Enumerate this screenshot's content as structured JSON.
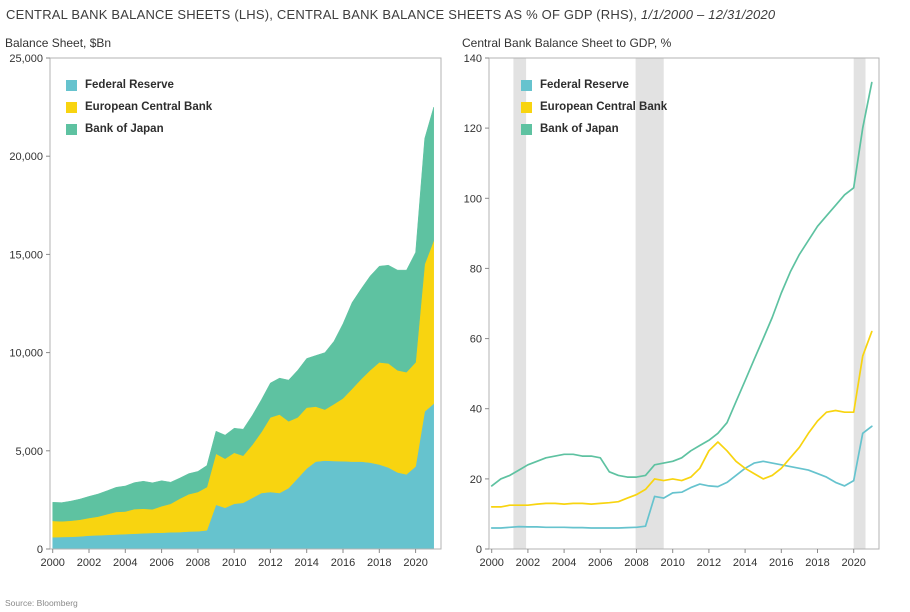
{
  "title": {
    "main": "CENTRAL BANK BALANCE SHEETS (LHS), CENTRAL BANK BALANCE SHEETS AS % OF GDP (RHS), ",
    "date_range": "1/1/2000 – 12/31/2020"
  },
  "source": "Source: Bloomberg",
  "chart_data": [
    {
      "type": "area",
      "stacked": true,
      "title": "Balance Sheet, $Bn",
      "xlim": [
        1999.85,
        2021.4
      ],
      "ylim": [
        0,
        25000
      ],
      "yticks": [
        0,
        5000,
        10000,
        15000,
        20000,
        25000
      ],
      "ytick_labels": [
        "0",
        "5,000",
        "10,000",
        "15,000",
        "20,000",
        "25,000"
      ],
      "xticks": [
        2000,
        2002,
        2004,
        2006,
        2008,
        2010,
        2012,
        2014,
        2016,
        2018,
        2020
      ],
      "legend_position": "top-left",
      "x": [
        2000,
        2000.5,
        2001,
        2001.5,
        2002,
        2002.5,
        2003,
        2003.5,
        2004,
        2004.5,
        2005,
        2005.5,
        2006,
        2006.5,
        2007,
        2007.5,
        2008,
        2008.5,
        2009,
        2009.5,
        2010,
        2010.5,
        2011,
        2011.5,
        2012,
        2012.5,
        2013,
        2013.5,
        2014,
        2014.5,
        2015,
        2015.5,
        2016,
        2016.5,
        2017,
        2017.5,
        2018,
        2018.5,
        2019,
        2019.5,
        2020,
        2020.5,
        2021
      ],
      "series": [
        {
          "name": "Federal Reserve",
          "color": "#66c3ce",
          "values": [
            600,
            610,
            620,
            640,
            680,
            700,
            720,
            740,
            760,
            780,
            800,
            820,
            830,
            850,
            860,
            890,
            900,
            950,
            2250,
            2100,
            2300,
            2350,
            2600,
            2850,
            2900,
            2850,
            3100,
            3600,
            4100,
            4450,
            4500,
            4480,
            4470,
            4450,
            4450,
            4400,
            4300,
            4150,
            3900,
            3800,
            4200,
            7000,
            7400
          ]
        },
        {
          "name": "European Central Bank",
          "color": "#f8d410",
          "values": [
            830,
            800,
            820,
            850,
            900,
            950,
            1050,
            1150,
            1150,
            1250,
            1250,
            1200,
            1350,
            1450,
            1700,
            1900,
            2000,
            2200,
            2600,
            2500,
            2600,
            2400,
            2700,
            3100,
            3800,
            4000,
            3400,
            3100,
            3100,
            2800,
            2600,
            2900,
            3200,
            3700,
            4200,
            4700,
            5200,
            5300,
            5200,
            5200,
            5300,
            7500,
            8300
          ]
        },
        {
          "name": "Bank of Japan",
          "color": "#5ec2a1",
          "values": [
            950,
            950,
            1000,
            1050,
            1100,
            1150,
            1200,
            1250,
            1300,
            1350,
            1400,
            1350,
            1300,
            1100,
            1050,
            1050,
            1050,
            1100,
            1150,
            1200,
            1250,
            1350,
            1500,
            1650,
            1750,
            1850,
            2100,
            2400,
            2500,
            2600,
            2900,
            3200,
            3800,
            4400,
            4600,
            4800,
            4900,
            5000,
            5100,
            5200,
            5600,
            6400,
            6800
          ]
        }
      ]
    },
    {
      "type": "line",
      "title": "Central Bank Balance Sheet to GDP, %",
      "xlim": [
        1999.85,
        2021.4
      ],
      "ylim": [
        0,
        140
      ],
      "yticks": [
        0,
        20,
        40,
        60,
        80,
        100,
        120,
        140
      ],
      "ytick_labels": [
        "0",
        "20",
        "40",
        "60",
        "80",
        "100",
        "120",
        "140"
      ],
      "xticks": [
        2000,
        2002,
        2004,
        2006,
        2008,
        2010,
        2012,
        2014,
        2016,
        2018,
        2020
      ],
      "legend_position": "top-left",
      "recession_bands": [
        [
          2001.2,
          2001.9
        ],
        [
          2007.95,
          2009.5
        ],
        [
          2020.0,
          2020.65
        ]
      ],
      "band_color": "#e2e2e2",
      "x": [
        2000,
        2000.5,
        2001,
        2001.5,
        2002,
        2002.5,
        2003,
        2003.5,
        2004,
        2004.5,
        2005,
        2005.5,
        2006,
        2006.5,
        2007,
        2007.5,
        2008,
        2008.5,
        2009,
        2009.5,
        2010,
        2010.5,
        2011,
        2011.5,
        2012,
        2012.5,
        2013,
        2013.5,
        2014,
        2014.5,
        2015,
        2015.5,
        2016,
        2016.5,
        2017,
        2017.5,
        2018,
        2018.5,
        2019,
        2019.5,
        2020,
        2020.5,
        2021
      ],
      "series": [
        {
          "name": "Federal Reserve",
          "color": "#66c3ce",
          "values": [
            6,
            6,
            6.2,
            6.4,
            6.3,
            6.3,
            6.2,
            6.2,
            6.2,
            6.1,
            6.1,
            6,
            6,
            6,
            6,
            6.1,
            6.2,
            6.5,
            15,
            14.5,
            16,
            16.2,
            17.5,
            18.5,
            18,
            17.8,
            19,
            21,
            23,
            24.5,
            25,
            24.5,
            24,
            23.5,
            23,
            22.5,
            21.5,
            20.5,
            19,
            18,
            19.5,
            33,
            35
          ]
        },
        {
          "name": "European Central Bank",
          "color": "#f8d410",
          "values": [
            12,
            12,
            12.5,
            12.5,
            12.5,
            12.8,
            13,
            13,
            12.8,
            13,
            13,
            12.8,
            13,
            13.2,
            13.5,
            14.5,
            15.5,
            17,
            20,
            19.5,
            20,
            19.5,
            20.5,
            23,
            28,
            30.5,
            28,
            25,
            23,
            21.5,
            20,
            21,
            23,
            26,
            29,
            33,
            36.5,
            39,
            39.5,
            39,
            39,
            55,
            62
          ]
        },
        {
          "name": "Bank of Japan",
          "color": "#5ec2a1",
          "values": [
            18,
            20,
            21,
            22.5,
            24,
            25,
            26,
            26.5,
            27,
            27,
            26.5,
            26.5,
            26,
            22,
            21,
            20.5,
            20.5,
            21,
            24,
            24.5,
            25,
            26,
            28,
            29.5,
            31,
            33,
            36,
            42,
            48,
            54,
            60,
            66,
            73,
            79,
            84,
            88,
            92,
            95,
            98,
            101,
            103,
            120,
            133
          ]
        }
      ]
    }
  ]
}
